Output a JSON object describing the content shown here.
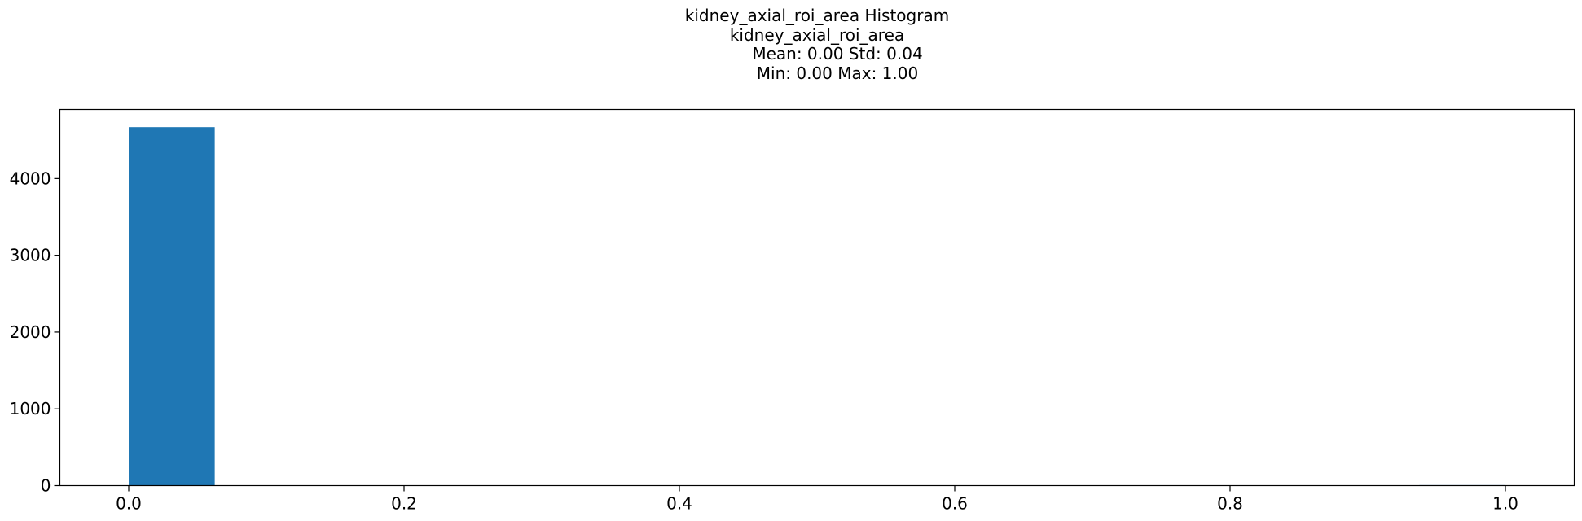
{
  "chart_data": {
    "type": "bar",
    "title_lines": [
      "kidney_axial_roi_area Histogram",
      "kidney_axial_roi_area",
      "Mean: 0.00 Std: 0.04",
      "Min: 0.00 Max: 1.00"
    ],
    "xlabel": "",
    "ylabel": "",
    "xlim": [
      -0.05,
      1.05
    ],
    "ylim": [
      0,
      4900
    ],
    "x_ticks": [
      0.0,
      0.2,
      0.4,
      0.6,
      0.8,
      1.0
    ],
    "x_tick_labels": [
      "0.0",
      "0.2",
      "0.4",
      "0.6",
      "0.8",
      "1.0"
    ],
    "y_ticks": [
      0,
      1000,
      2000,
      3000,
      4000
    ],
    "y_tick_labels": [
      "0",
      "1000",
      "2000",
      "3000",
      "4000"
    ],
    "bins": [
      {
        "x0": 0.0,
        "x1": 0.0625,
        "count": 4670
      },
      {
        "x0": 0.0625,
        "x1": 0.125,
        "count": 0
      },
      {
        "x0": 0.125,
        "x1": 0.1875,
        "count": 0
      },
      {
        "x0": 0.1875,
        "x1": 0.25,
        "count": 0
      },
      {
        "x0": 0.25,
        "x1": 0.3125,
        "count": 0
      },
      {
        "x0": 0.3125,
        "x1": 0.375,
        "count": 0
      },
      {
        "x0": 0.375,
        "x1": 0.4375,
        "count": 0
      },
      {
        "x0": 0.4375,
        "x1": 0.5,
        "count": 0
      },
      {
        "x0": 0.5,
        "x1": 0.5625,
        "count": 0
      },
      {
        "x0": 0.5625,
        "x1": 0.625,
        "count": 0
      },
      {
        "x0": 0.625,
        "x1": 0.6875,
        "count": 0
      },
      {
        "x0": 0.6875,
        "x1": 0.75,
        "count": 0
      },
      {
        "x0": 0.75,
        "x1": 0.8125,
        "count": 0
      },
      {
        "x0": 0.8125,
        "x1": 0.875,
        "count": 0
      },
      {
        "x0": 0.875,
        "x1": 0.9375,
        "count": 0
      },
      {
        "x0": 0.9375,
        "x1": 1.0,
        "count": 1
      }
    ],
    "bar_color": "#1f77b4",
    "grid": false,
    "legend": "none"
  }
}
